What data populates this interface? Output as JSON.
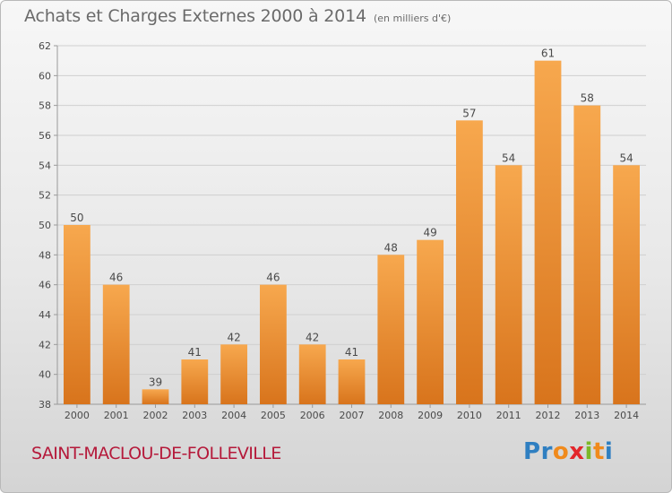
{
  "header": {
    "title": "Achats et Charges Externes 2000 à 2014",
    "unit": "(en milliers d'€)"
  },
  "footer": {
    "place": "SAINT-MACLOU-DE-FOLLEVILLE",
    "brand_letters": [
      "P",
      "r",
      "o",
      "x",
      "i",
      "t",
      "i"
    ],
    "brand_colors": [
      "#2f7fc1",
      "#2f7fc1",
      "#f08a1c",
      "#e3262b",
      "#7cb828",
      "#f08a1c",
      "#2f7fc1"
    ]
  },
  "colors": {
    "bar_light": "#f7a84e",
    "bar_dark": "#d8741c",
    "grid": "#cfcfcf",
    "axis": "#9a9a9a",
    "title": "#6a6a6a",
    "place": "#b5193a"
  },
  "chart_data": {
    "type": "bar",
    "categories": [
      "2000",
      "2001",
      "2002",
      "2003",
      "2004",
      "2005",
      "2006",
      "2007",
      "2008",
      "2009",
      "2010",
      "2011",
      "2012",
      "2013",
      "2014"
    ],
    "values": [
      50,
      46,
      39,
      41,
      42,
      46,
      42,
      41,
      48,
      49,
      57,
      54,
      61,
      58,
      54
    ],
    "data_labels": [
      "50",
      "46",
      "39",
      "41",
      "42",
      "46",
      "42",
      "41",
      "48",
      "49",
      "57",
      "54",
      "61",
      "58",
      "54"
    ],
    "title": "Achats et Charges Externes 2000 à 2014",
    "xlabel": "",
    "ylabel": "",
    "ylim": [
      38,
      62
    ],
    "yticks": [
      38,
      40,
      42,
      44,
      46,
      48,
      50,
      52,
      54,
      56,
      58,
      60,
      62
    ],
    "grid": true,
    "legend": "none"
  }
}
